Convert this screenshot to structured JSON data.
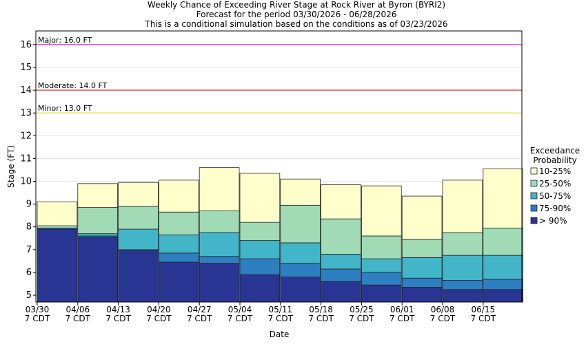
{
  "chart_data": {
    "type": "bar",
    "title": "Weekly Chance of Exceeding River Stage at Rock River at Byron (BYRI2)",
    "subtitle": "Forecast for the period 03/30/2026 - 06/28/2026",
    "subtitle2": "This is a conditional simulation based on the conditions as of 03/23/2026",
    "x_label": "Date",
    "y_label": "Stage (FT)",
    "legend_title": "Exceedance Probability",
    "categories": [
      "03/30 7 CDT",
      "04/06 7 CDT",
      "04/13 7 CDT",
      "04/20 7 CDT",
      "04/27 7 CDT",
      "05/04 7 CDT",
      "05/11 7 CDT",
      "05/18 7 CDT",
      "05/25 7 CDT",
      "06/01 7 CDT",
      "06/08 7 CDT",
      "06/15 7 CDT"
    ],
    "series": [
      {
        "name": "> 90%",
        "color": "#283593",
        "values": [
          7.9,
          7.55,
          6.95,
          6.45,
          6.4,
          5.9,
          5.8,
          5.6,
          5.45,
          5.35,
          5.25,
          5.25
        ]
      },
      {
        "name": "75-90%",
        "color": "#2e7fc1",
        "values": [
          7.95,
          7.6,
          7.0,
          6.85,
          6.7,
          6.6,
          6.4,
          6.15,
          6.0,
          5.75,
          5.65,
          5.7
        ]
      },
      {
        "name": "50-75%",
        "color": "#42b5c9",
        "values": [
          7.95,
          7.7,
          7.9,
          7.65,
          7.75,
          7.4,
          7.3,
          6.8,
          6.6,
          6.65,
          6.75,
          6.75
        ]
      },
      {
        "name": "25-50%",
        "color": "#a0dbb5",
        "values": [
          8.05,
          8.85,
          8.9,
          8.65,
          8.7,
          8.2,
          8.95,
          8.35,
          7.6,
          7.45,
          7.75,
          7.95
        ]
      },
      {
        "name": "10-25%",
        "color": "#ffffcc",
        "values": [
          9.1,
          9.9,
          9.95,
          10.05,
          10.6,
          10.35,
          10.1,
          9.85,
          9.8,
          9.35,
          10.05,
          10.55
        ]
      }
    ],
    "ylim": [
      4.7,
      16.6
    ],
    "yticks": [
      5,
      6,
      7,
      8,
      9,
      10,
      11,
      12,
      13,
      14,
      15,
      16
    ],
    "flood_levels": [
      {
        "label": "Major: 16.0 FT",
        "value": 16,
        "color": "#cc33cc"
      },
      {
        "label": "Moderate: 14.0 FT",
        "value": 14,
        "color": "#cc2222"
      },
      {
        "label": "Minor: 13.0 FT",
        "value": 13,
        "color": "#dddd33"
      }
    ],
    "grid": true
  }
}
